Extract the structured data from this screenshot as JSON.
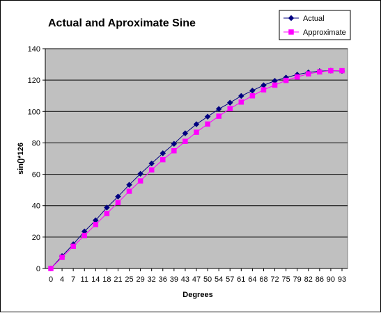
{
  "chart_data": {
    "type": "line",
    "title": "Actual and Aproximate Sine",
    "xlabel": "Degrees",
    "ylabel": "sin()*126",
    "categories": [
      "0",
      "4",
      "7",
      "11",
      "14",
      "18",
      "21",
      "25",
      "29",
      "32",
      "36",
      "39",
      "43",
      "47",
      "50",
      "54",
      "57",
      "61",
      "64",
      "68",
      "72",
      "75",
      "79",
      "82",
      "86",
      "90",
      "93"
    ],
    "ylim": [
      0,
      140
    ],
    "yticks": [
      0,
      20,
      40,
      60,
      80,
      100,
      120,
      140
    ],
    "grid": "horizontal",
    "legend_position": "top-right",
    "plot_background": "#C0C0C0",
    "series": [
      {
        "name": "Actual",
        "color": "#000080",
        "marker": "diamond",
        "values": [
          0,
          7.9,
          15.4,
          23.6,
          30.7,
          38.8,
          45.8,
          53.3,
          60.3,
          66.9,
          73.4,
          79.4,
          86.1,
          91.9,
          96.7,
          101.6,
          105.6,
          109.9,
          113.3,
          116.7,
          119.5,
          121.6,
          123.5,
          124.9,
          125.7,
          126,
          125.8
        ]
      },
      {
        "name": "Approximate",
        "color": "#FF00FF",
        "marker": "square",
        "values": [
          0,
          7.1,
          14.1,
          21.0,
          28.0,
          35.0,
          42.0,
          49.2,
          55.8,
          62.8,
          69.3,
          75.0,
          81.0,
          86.8,
          92.0,
          97.0,
          101.8,
          106.0,
          110.0,
          113.8,
          116.8,
          119.8,
          122.0,
          124.0,
          125.2,
          126,
          126
        ]
      }
    ]
  }
}
